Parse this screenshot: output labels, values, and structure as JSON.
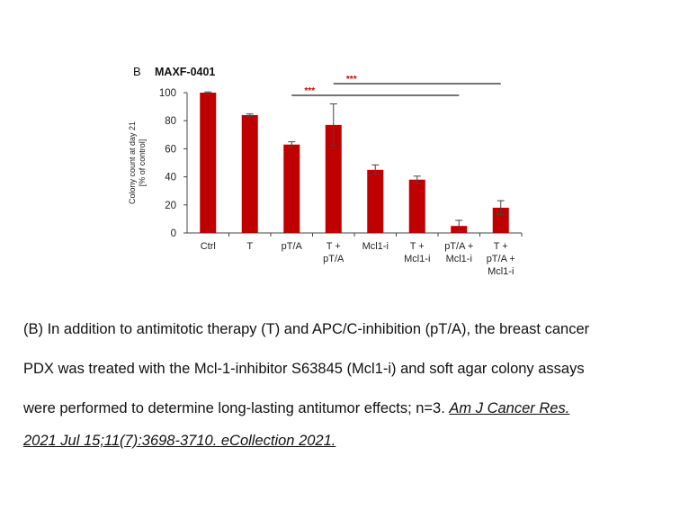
{
  "panel_letter": "B",
  "chart_data": {
    "type": "bar",
    "title": "MAXF-0401",
    "ylabel": "Colony count at day 21",
    "ylabel2": "[% of control]",
    "ylim": [
      0,
      100
    ],
    "yticks": [
      0,
      20,
      40,
      60,
      80,
      100
    ],
    "categories": [
      [
        "Ctrl"
      ],
      [
        "T"
      ],
      [
        "pT/A"
      ],
      [
        "T +",
        "pT/A"
      ],
      [
        "Mcl1-i"
      ],
      [
        "T +",
        "Mcl1-i"
      ],
      [
        "pT/A +",
        "Mcl1-i"
      ],
      [
        "T +",
        "pT/A +",
        "Mcl1-i"
      ]
    ],
    "values": [
      100,
      84,
      63,
      77,
      45,
      38,
      5,
      18
    ],
    "errors": [
      0.5,
      0.8,
      2,
      15,
      3.5,
      2.5,
      4,
      5
    ],
    "bar_color": "#c00000",
    "significance": [
      {
        "from": 2,
        "to": 6,
        "label": "***"
      },
      {
        "from": 3,
        "to": 7,
        "label": "***"
      }
    ],
    "significance_color": "#cc0000"
  },
  "caption": {
    "lines": [
      "(B) In addition to antimitotic therapy (T) and APC/C-inhibition (pT/A), the breast cancer",
      "PDX was treated with the Mcl-1-inhibitor S63845 (Mcl1-i) and soft agar colony assays",
      "were performed to determine long-lasting antitumor effects; n=3."
    ],
    "citation_part1": "Am J Cancer Res.",
    "citation_part2": "2021 Jul 15;11(7):3698-3710. eCollection 2021."
  }
}
